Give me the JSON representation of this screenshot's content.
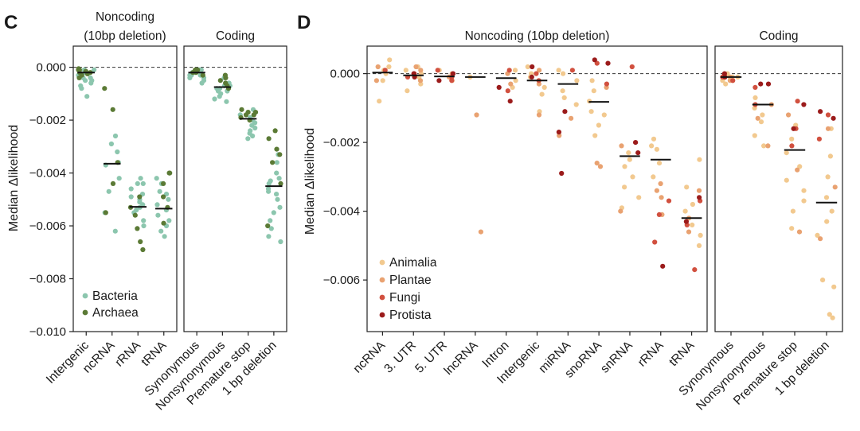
{
  "colors": {
    "Bacteria": "#8cc6ae",
    "Archaea": "#5b7a35",
    "Animalia": "#f2c98f",
    "Plantae": "#e9a271",
    "Fungi": "#d1503f",
    "Protista": "#9b1b1b",
    "median": "#111111",
    "zero_line": "#333333",
    "frame": "#222222"
  },
  "chart_data": [
    {
      "id": "C",
      "panel_label": "C",
      "type": "scatter",
      "ylabel": "Median Δlikelihood",
      "ylim": [
        -0.01,
        0.0008
      ],
      "yticks": [
        0.0,
        -0.002,
        -0.004,
        -0.006,
        -0.008,
        -0.01
      ],
      "ytick_labels": [
        "0.000",
        "−0.002",
        "−0.004",
        "−0.006",
        "−0.008",
        "−0.010"
      ],
      "zero_line": true,
      "legend": [
        "Bacteria",
        "Archaea"
      ],
      "legend_position": "bottom-left",
      "facets": [
        {
          "title": [
            "Noncoding",
            "(10bp deletion)"
          ],
          "categories": [
            {
              "label": "Intergenic",
              "median": -0.0002,
              "points": {
                "Bacteria": [
                  -0.0001,
                  -0.0003,
                  -0.0005,
                  -0.0006,
                  -0.0002,
                  -0.0004,
                  -0.0007,
                  -0.0001,
                  -0.0002,
                  -0.0003,
                  -0.0008,
                  -0.0011,
                  -0.0005,
                  -0.0004
                ],
                "Archaea": [
                  -5e-05,
                  -0.0001,
                  -0.0002,
                  -0.00015,
                  -0.0003,
                  -0.0002,
                  -0.0004,
                  -0.0001,
                  -0.00025
                ]
              }
            },
            {
              "label": "ncRNA",
              "median": -0.00365,
              "points": {
                "Bacteria": [
                  -0.0026,
                  -0.0029,
                  -0.0036,
                  -0.0037,
                  -0.0042,
                  -0.0047,
                  -0.0055,
                  -0.0062,
                  -0.0032
                ],
                "Archaea": [
                  -0.0008,
                  -0.0016,
                  -0.0036,
                  -0.0044,
                  -0.0055
                ]
              }
            },
            {
              "label": "rRNA",
              "median": -0.00528,
              "points": {
                "Bacteria": [
                  -0.0042,
                  -0.0044,
                  -0.0046,
                  -0.0048,
                  -0.005,
                  -0.0051,
                  -0.0052,
                  -0.0053,
                  -0.0054,
                  -0.0055,
                  -0.0058,
                  -0.006,
                  -0.0044,
                  -0.0049
                ],
                "Archaea": [
                  -0.0053,
                  -0.0056,
                  -0.0061,
                  -0.0066,
                  -0.0069,
                  -0.0049
                ]
              }
            },
            {
              "label": "tRNA",
              "median": -0.00535,
              "points": {
                "Bacteria": [
                  -0.0042,
                  -0.0044,
                  -0.0047,
                  -0.005,
                  -0.0052,
                  -0.0054,
                  -0.0056,
                  -0.0058,
                  -0.006,
                  -0.0062,
                  -0.0064,
                  -0.0048
                ],
                "Archaea": [
                  -0.004,
                  -0.004,
                  -0.0044,
                  -0.0049,
                  -0.0053,
                  -0.0059
                ]
              }
            }
          ]
        },
        {
          "title": [
            "Coding"
          ],
          "categories": [
            {
              "label": "Synonymous",
              "median": -0.0002,
              "points": {
                "Bacteria": [
                  -0.0001,
                  -0.0002,
                  -0.0003,
                  -0.0004,
                  -0.0003,
                  -0.0002,
                  -0.0001,
                  -0.0005,
                  -0.0004,
                  -0.0002,
                  -0.0003,
                  -0.0006
                ],
                "Archaea": [
                  -0.0001,
                  -0.0002,
                  -0.0002,
                  -0.0003,
                  -0.0001
                ]
              }
            },
            {
              "label": "Nonsynonymous",
              "median": -0.00075,
              "points": {
                "Bacteria": [
                  -0.0004,
                  -0.0006,
                  -0.0007,
                  -0.0008,
                  -0.0009,
                  -0.001,
                  -0.0011,
                  -0.0012,
                  -0.0008,
                  -0.0007,
                  -0.0013,
                  -0.0009
                ],
                "Archaea": [
                  -0.0003,
                  -0.0004,
                  -0.0005,
                  -0.0006,
                  -0.0007,
                  -0.0008
                ]
              }
            },
            {
              "label": "Premature stop",
              "median": -0.00195,
              "points": {
                "Bacteria": [
                  -0.0016,
                  -0.0018,
                  -0.0019,
                  -0.002,
                  -0.0021,
                  -0.0022,
                  -0.0023,
                  -0.0024,
                  -0.0025,
                  -0.0026,
                  -0.0027,
                  -0.0019
                ],
                "Archaea": [
                  -0.0016,
                  -0.0017,
                  -0.0018,
                  -0.0018,
                  -0.0019,
                  -0.002,
                  -0.0017
                ]
              }
            },
            {
              "label": "1 bp deletion",
              "median": -0.0045,
              "points": {
                "Bacteria": [
                  -0.0033,
                  -0.0036,
                  -0.004,
                  -0.0042,
                  -0.0044,
                  -0.0046,
                  -0.0048,
                  -0.005,
                  -0.0053,
                  -0.0055,
                  -0.0058,
                  -0.0061,
                  -0.0064,
                  -0.0066,
                  -0.0047,
                  -0.0043
                ],
                "Archaea": [
                  -0.0024,
                  -0.0027,
                  -0.0031,
                  -0.0033,
                  -0.0036,
                  -0.0044,
                  -0.006
                ]
              }
            }
          ]
        }
      ]
    },
    {
      "id": "D",
      "panel_label": "D",
      "type": "scatter",
      "ylabel": "Median Δlikelihood",
      "ylim": [
        -0.0075,
        0.0008
      ],
      "yticks": [
        0.0,
        -0.002,
        -0.004,
        -0.006
      ],
      "ytick_labels": [
        "0.000",
        "−0.002",
        "−0.004",
        "−0.006"
      ],
      "zero_line": true,
      "legend": [
        "Animalia",
        "Plantae",
        "Fungi",
        "Protista"
      ],
      "legend_position": "bottom-left",
      "facets": [
        {
          "title": [
            "Noncoding (10bp deletion)"
          ],
          "categories": [
            {
              "label": "ncRNA",
              "median": 3e-05,
              "points": {
                "Animalia": [
                  0.0004,
                  0.0002,
                  0.0001,
                  -0.0008,
                  -0.0002,
                  0.0
                ],
                "Plantae": [
                  0.0002,
                  -0.0002
                ],
                "Fungi": [
                  0.0001
                ],
                "Protista": []
              }
            },
            {
              "label": "3. UTR",
              "median": -5e-05,
              "points": {
                "Animalia": [
                  0.0002,
                  0.0001,
                  -0.0001,
                  -0.0003,
                  -0.0005,
                  0.0
                ],
                "Plantae": [
                  0.0002,
                  -0.0002,
                  0.0001
                ],
                "Fungi": [
                  0.0,
                  -0.0001
                ],
                "Protista": [
                  -0.0001,
                  0.0
                ]
              }
            },
            {
              "label": "5. UTR",
              "median": -8e-05,
              "points": {
                "Animalia": [
                  0.0001,
                  -0.0002
                ],
                "Plantae": [
                  0.0,
                  -0.0001
                ],
                "Fungi": [
                  0.0001,
                  -0.0001,
                  -0.0002
                ],
                "Protista": [
                  0.0,
                  -0.0002
                ]
              }
            },
            {
              "label": "lncRNA",
              "median": -0.0001,
              "points": {
                "Animalia": [
                  -0.0001
                ],
                "Plantae": [
                  -0.0012,
                  -0.0046
                ],
                "Fungi": [],
                "Protista": []
              }
            },
            {
              "label": "Intron",
              "median": -0.00013,
              "points": {
                "Animalia": [
                  0.0001,
                  -0.0002,
                  -0.0004
                ],
                "Plantae": [
                  0.0,
                  -0.0003
                ],
                "Fungi": [
                  -0.0005,
                  0.0001
                ],
                "Protista": [
                  -0.0008,
                  -0.0004
                ]
              }
            },
            {
              "label": "Intergenic",
              "median": -0.0002,
              "points": {
                "Animalia": [
                  0.0002,
                  -0.0001,
                  -0.0004,
                  -0.0006,
                  -0.0011,
                  0.0
                ],
                "Plantae": [
                  0.0001,
                  -0.0003,
                  -0.0012
                ],
                "Fungi": [
                  0.0,
                  -0.0002
                ],
                "Protista": [
                  0.0002,
                  -0.0001
                ]
              }
            },
            {
              "label": "miRNA",
              "median": -0.0003,
              "points": {
                "Animalia": [
                  0.0001,
                  -0.0002,
                  -0.0005,
                  -0.0007,
                  -0.0009,
                  0.0
                ],
                "Plantae": [
                  -0.0013,
                  -0.0018
                ],
                "Fungi": [
                  0.0001
                ],
                "Protista": [
                  -0.0017,
                  -0.0029,
                  -0.0011
                ]
              }
            },
            {
              "label": "snoRNA",
              "median": -0.00082,
              "points": {
                "Animalia": [
                  -0.0002,
                  -0.0005,
                  -0.0011,
                  -0.0015,
                  -0.0018,
                  -0.0012,
                  -0.0008
                ],
                "Plantae": [
                  -0.0004,
                  -0.0026,
                  -0.0027
                ],
                "Fungi": [
                  0.0003,
                  -0.0003
                ],
                "Protista": [
                  0.0004,
                  0.0003
                ]
              }
            },
            {
              "label": "snRNA",
              "median": -0.0024,
              "points": {
                "Animalia": [
                  -0.0023,
                  -0.0025,
                  -0.0027,
                  -0.003,
                  -0.0033,
                  -0.0036,
                  -0.0039
                ],
                "Plantae": [
                  -0.0021,
                  -0.004
                ],
                "Fungi": [
                  0.0002
                ],
                "Protista": [
                  -0.002,
                  -0.0023
                ]
              }
            },
            {
              "label": "rRNA",
              "median": -0.0025,
              "points": {
                "Animalia": [
                  -0.0019,
                  -0.0021,
                  -0.0022,
                  -0.0026,
                  -0.003
                ],
                "Plantae": [
                  -0.0032,
                  -0.0034,
                  -0.0036,
                  -0.0041
                ],
                "Fungi": [
                  -0.0037,
                  -0.0041,
                  -0.0049
                ],
                "Protista": [
                  -0.0056
                ]
              }
            },
            {
              "label": "tRNA",
              "median": -0.0042,
              "points": {
                "Animalia": [
                  -0.0025,
                  -0.0033,
                  -0.0038,
                  -0.004,
                  -0.0044,
                  -0.0047,
                  -0.005
                ],
                "Plantae": [
                  -0.0034,
                  -0.0042,
                  -0.0046
                ],
                "Fungi": [
                  -0.0037,
                  -0.0044,
                  -0.0057
                ],
                "Protista": [
                  -0.0036,
                  -0.0043
                ]
              }
            }
          ]
        },
        {
          "title": [
            "Coding"
          ],
          "categories": [
            {
              "label": "Synonymous",
              "median": -0.0001,
              "points": {
                "Animalia": [
                  0.0,
                  -0.0001,
                  -0.0002,
                  -0.0003,
                  -0.0001,
                  -0.0002
                ],
                "Plantae": [
                  -0.0001,
                  -0.0002,
                  -0.0001
                ],
                "Fungi": [
                  -0.0001,
                  -0.0002
                ],
                "Protista": [
                  -0.0001,
                  0.0
                ]
              }
            },
            {
              "label": "Nonsynonymous",
              "median": -0.0009,
              "points": {
                "Animalia": [
                  -0.0007,
                  -0.001,
                  -0.0012,
                  -0.0014,
                  -0.0018,
                  -0.0021
                ],
                "Plantae": [
                  -0.0009,
                  -0.0013,
                  -0.0021
                ],
                "Fungi": [
                  -0.0004,
                  -0.0009
                ],
                "Protista": [
                  -0.0003,
                  -0.0003
                ]
              }
            },
            {
              "label": "Premature stop",
              "median": -0.00222,
              "points": {
                "Animalia": [
                  -0.0015,
                  -0.0019,
                  -0.0023,
                  -0.0027,
                  -0.0031,
                  -0.0034,
                  -0.0037,
                  -0.004,
                  -0.0045
                ],
                "Plantae": [
                  -0.0012,
                  -0.0028,
                  -0.0046
                ],
                "Fungi": [
                  -0.0008,
                  -0.0016,
                  -0.0021
                ],
                "Protista": [
                  -0.0009,
                  -0.0016
                ]
              }
            },
            {
              "label": "1 bp deletion",
              "median": -0.00375,
              "points": {
                "Animalia": [
                  -0.0016,
                  -0.0024,
                  -0.003,
                  -0.0036,
                  -0.004,
                  -0.0043,
                  -0.0047,
                  -0.006,
                  -0.0062,
                  -0.007,
                  -0.0071
                ],
                "Plantae": [
                  -0.0016,
                  -0.0033,
                  -0.0048
                ],
                "Fungi": [
                  -0.0012,
                  -0.0019
                ],
                "Protista": [
                  -0.0011,
                  -0.0013
                ]
              }
            }
          ]
        }
      ]
    }
  ]
}
